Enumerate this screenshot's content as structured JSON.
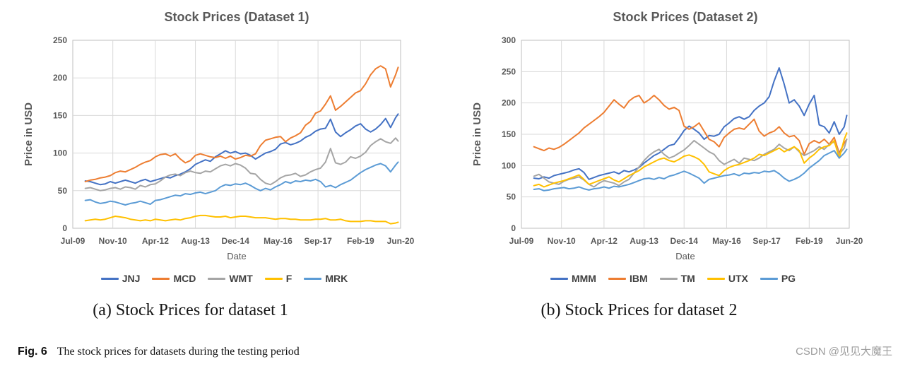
{
  "figure": {
    "subcaption_a": "(a) Stock Prices for dataset 1",
    "subcaption_b": "(b) Stock Prices for dataset 2",
    "caption_label": "Fig. 6",
    "caption_text": "The stock prices for datasets during the testing period",
    "watermark": "CSDN @见见大魔王"
  },
  "style": {
    "title_color": "#595959",
    "axis_text_color": "#595959",
    "grid_color": "#D9D9D9",
    "border_color": "#BFBFBF"
  },
  "chart_data": [
    {
      "type": "line",
      "title": "Stock Prices (Dataset 1)",
      "xlabel": "Date",
      "ylabel": "Price in USD",
      "ylim": [
        0,
        250
      ],
      "yticks": [
        0,
        50,
        100,
        150,
        200,
        250
      ],
      "x_domain_months": [
        0,
        131
      ],
      "grid": true,
      "legend_position": "bottom",
      "xticks": [
        {
          "label": "Jul-09",
          "m": 0
        },
        {
          "label": "Nov-10",
          "m": 16
        },
        {
          "label": "Apr-12",
          "m": 33
        },
        {
          "label": "Aug-13",
          "m": 49
        },
        {
          "label": "Dec-14",
          "m": 65
        },
        {
          "label": "May-16",
          "m": 82
        },
        {
          "label": "Sep-17",
          "m": 98
        },
        {
          "label": "Feb-19",
          "m": 115
        },
        {
          "label": "Jun-20",
          "m": 131
        }
      ],
      "x_months": [
        5,
        7,
        9,
        11,
        13,
        15,
        17,
        19,
        21,
        23,
        25,
        27,
        29,
        31,
        33,
        35,
        37,
        39,
        41,
        43,
        45,
        47,
        49,
        51,
        53,
        55,
        57,
        59,
        61,
        63,
        65,
        67,
        69,
        71,
        73,
        75,
        77,
        79,
        81,
        83,
        85,
        87,
        89,
        91,
        93,
        95,
        97,
        99,
        101,
        103,
        105,
        107,
        109,
        111,
        113,
        115,
        117,
        119,
        121,
        123,
        125,
        127,
        129,
        130
      ],
      "series": [
        {
          "name": "JNJ",
          "color": "#4472C4",
          "values": [
            63,
            62,
            60,
            58,
            59,
            62,
            60,
            62,
            64,
            62,
            60,
            63,
            65,
            62,
            64,
            66,
            68,
            67,
            70,
            72,
            75,
            79,
            85,
            88,
            91,
            89,
            95,
            99,
            103,
            100,
            102,
            99,
            100,
            97,
            92,
            96,
            100,
            102,
            105,
            112,
            114,
            111,
            113,
            116,
            121,
            124,
            129,
            132,
            133,
            145,
            128,
            122,
            127,
            131,
            136,
            139,
            132,
            128,
            132,
            138,
            146,
            134,
            147,
            152
          ]
        },
        {
          "name": "MCD",
          "color": "#ED7D31",
          "values": [
            62,
            64,
            65,
            67,
            68,
            70,
            74,
            76,
            75,
            78,
            81,
            85,
            88,
            90,
            95,
            98,
            99,
            96,
            99,
            92,
            87,
            90,
            97,
            99,
            97,
            95,
            94,
            96,
            93,
            96,
            92,
            94,
            97,
            96,
            99,
            110,
            117,
            119,
            121,
            122,
            115,
            120,
            123,
            127,
            137,
            142,
            153,
            156,
            165,
            176,
            157,
            162,
            168,
            174,
            180,
            183,
            192,
            204,
            212,
            216,
            212,
            188,
            204,
            214
          ]
        },
        {
          "name": "WMT",
          "color": "#A5A5A5",
          "values": [
            53,
            54,
            52,
            50,
            51,
            53,
            54,
            52,
            55,
            54,
            52,
            57,
            55,
            58,
            59,
            63,
            68,
            71,
            72,
            70,
            74,
            76,
            74,
            73,
            76,
            75,
            79,
            83,
            85,
            83,
            86,
            84,
            80,
            73,
            72,
            65,
            60,
            58,
            62,
            67,
            70,
            71,
            73,
            69,
            71,
            75,
            78,
            80,
            88,
            106,
            87,
            85,
            88,
            95,
            93,
            96,
            101,
            110,
            115,
            119,
            115,
            113,
            120,
            116
          ]
        },
        {
          "name": "F",
          "color": "#FFC000",
          "values": [
            10,
            11,
            12,
            11,
            12,
            14,
            16,
            15,
            14,
            12,
            11,
            10,
            11,
            10,
            12,
            11,
            10,
            11,
            12,
            11,
            13,
            14,
            16,
            17,
            17,
            16,
            15,
            15,
            16,
            14,
            15,
            16,
            16,
            15,
            14,
            14,
            14,
            13,
            12,
            13,
            13,
            12,
            12,
            11,
            11,
            11,
            12,
            12,
            13,
            11,
            11,
            12,
            10,
            9,
            9,
            9,
            10,
            10,
            9,
            9,
            9,
            6,
            7,
            8
          ]
        },
        {
          "name": "MRK",
          "color": "#5B9BD5",
          "values": [
            37,
            38,
            35,
            33,
            34,
            36,
            35,
            33,
            31,
            33,
            34,
            36,
            34,
            32,
            37,
            38,
            40,
            42,
            44,
            43,
            46,
            45,
            47,
            48,
            46,
            48,
            50,
            55,
            58,
            57,
            59,
            58,
            60,
            57,
            53,
            50,
            53,
            51,
            55,
            58,
            62,
            60,
            63,
            62,
            64,
            63,
            65,
            62,
            55,
            57,
            54,
            58,
            61,
            64,
            69,
            74,
            78,
            81,
            84,
            86,
            83,
            75,
            84,
            88
          ]
        }
      ]
    },
    {
      "type": "line",
      "title": "Stock Prices (Dataset 2)",
      "xlabel": "Date",
      "ylabel": "Price in USD",
      "ylim": [
        0,
        300
      ],
      "yticks": [
        0,
        50,
        100,
        150,
        200,
        250,
        300
      ],
      "x_domain_months": [
        0,
        131
      ],
      "grid": true,
      "legend_position": "bottom",
      "xticks": [
        {
          "label": "Jul-09",
          "m": 0
        },
        {
          "label": "Nov-10",
          "m": 16
        },
        {
          "label": "Apr-12",
          "m": 33
        },
        {
          "label": "Aug-13",
          "m": 49
        },
        {
          "label": "Dec-14",
          "m": 65
        },
        {
          "label": "May-16",
          "m": 82
        },
        {
          "label": "Sep-17",
          "m": 98
        },
        {
          "label": "Feb-19",
          "m": 115
        },
        {
          "label": "Jun-20",
          "m": 131
        }
      ],
      "x_months": [
        5,
        7,
        9,
        11,
        13,
        15,
        17,
        19,
        21,
        23,
        25,
        27,
        29,
        31,
        33,
        35,
        37,
        39,
        41,
        43,
        45,
        47,
        49,
        51,
        53,
        55,
        57,
        59,
        61,
        63,
        65,
        67,
        69,
        71,
        73,
        75,
        77,
        79,
        81,
        83,
        85,
        87,
        89,
        91,
        93,
        95,
        97,
        99,
        101,
        103,
        105,
        107,
        109,
        111,
        113,
        115,
        117,
        119,
        121,
        123,
        125,
        127,
        129,
        130
      ],
      "series": [
        {
          "name": "MMM",
          "color": "#4472C4",
          "values": [
            80,
            79,
            82,
            80,
            84,
            86,
            88,
            90,
            93,
            95,
            89,
            78,
            81,
            84,
            86,
            88,
            90,
            87,
            92,
            90,
            93,
            97,
            104,
            110,
            116,
            120,
            126,
            132,
            134,
            144,
            156,
            163,
            158,
            152,
            142,
            148,
            147,
            150,
            162,
            168,
            175,
            178,
            174,
            178,
            188,
            195,
            200,
            210,
            235,
            256,
            230,
            200,
            205,
            195,
            180,
            198,
            212,
            165,
            162,
            152,
            170,
            150,
            162,
            180
          ]
        },
        {
          "name": "IBM",
          "color": "#ED7D31",
          "values": [
            130,
            127,
            124,
            128,
            126,
            129,
            134,
            140,
            146,
            152,
            160,
            166,
            172,
            178,
            185,
            195,
            205,
            198,
            192,
            203,
            209,
            212,
            200,
            205,
            212,
            205,
            196,
            190,
            193,
            188,
            163,
            158,
            162,
            168,
            155,
            142,
            138,
            130,
            145,
            152,
            158,
            160,
            158,
            166,
            174,
            155,
            147,
            152,
            155,
            162,
            152,
            146,
            148,
            140,
            118,
            135,
            140,
            136,
            142,
            134,
            145,
            120,
            136,
            142
          ]
        },
        {
          "name": "TM",
          "color": "#A5A5A5",
          "values": [
            83,
            86,
            80,
            74,
            72,
            70,
            75,
            78,
            80,
            82,
            77,
            70,
            66,
            72,
            76,
            74,
            72,
            68,
            74,
            78,
            88,
            98,
            108,
            116,
            122,
            126,
            118,
            112,
            115,
            120,
            125,
            132,
            140,
            134,
            128,
            122,
            118,
            108,
            102,
            106,
            110,
            104,
            112,
            110,
            108,
            112,
            118,
            122,
            126,
            134,
            128,
            124,
            130,
            122,
            116,
            120,
            124,
            130,
            126,
            134,
            138,
            118,
            128,
            142
          ]
        },
        {
          "name": "UTX",
          "color": "#FFC000",
          "values": [
            68,
            70,
            66,
            69,
            72,
            74,
            76,
            79,
            82,
            85,
            78,
            70,
            73,
            76,
            79,
            82,
            77,
            74,
            79,
            84,
            88,
            92,
            98,
            102,
            106,
            110,
            112,
            108,
            106,
            110,
            115,
            117,
            114,
            110,
            102,
            90,
            87,
            84,
            92,
            97,
            100,
            102,
            105,
            108,
            112,
            118,
            116,
            120,
            124,
            128,
            122,
            126,
            130,
            124,
            104,
            112,
            118,
            126,
            130,
            132,
            140,
            112,
            142,
            152
          ]
        },
        {
          "name": "PG",
          "color": "#5B9BD5",
          "values": [
            62,
            63,
            60,
            61,
            63,
            64,
            65,
            63,
            64,
            66,
            63,
            61,
            63,
            64,
            66,
            64,
            67,
            66,
            68,
            70,
            73,
            76,
            79,
            80,
            78,
            81,
            79,
            83,
            85,
            88,
            91,
            88,
            84,
            80,
            72,
            78,
            80,
            82,
            84,
            85,
            87,
            84,
            88,
            87,
            89,
            88,
            91,
            90,
            92,
            87,
            80,
            75,
            78,
            82,
            88,
            96,
            102,
            108,
            116,
            120,
            124,
            112,
            120,
            126
          ]
        }
      ]
    }
  ]
}
